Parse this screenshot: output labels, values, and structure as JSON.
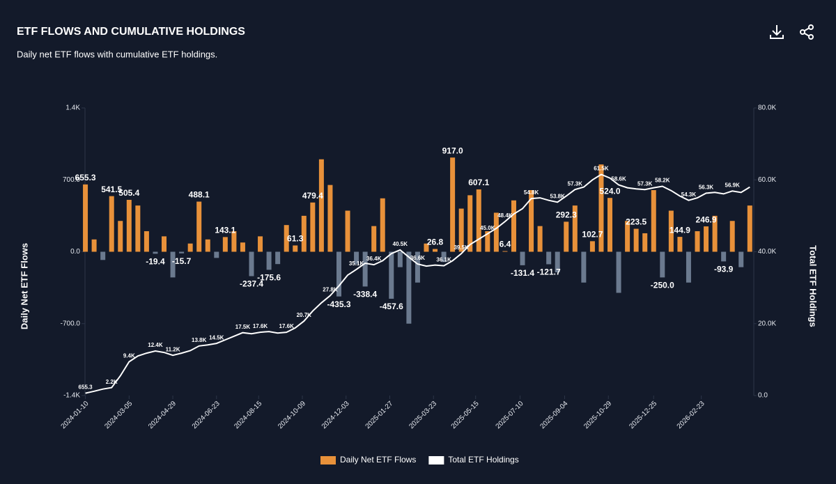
{
  "chart_data": {
    "type": "combo",
    "title": "ETF FLOWS AND CUMULATIVE HOLDINGS",
    "subtitle": "Daily net ETF flows with cumulative ETF holdings.",
    "y_label": "Daily Net ETF Flows",
    "y2_label": "Total ETF Holdings",
    "x": [
      "2024-01-10",
      "2024-01-21",
      "2024-02-01",
      "2024-02-12",
      "2024-02-23",
      "2024-03-05",
      "2024-03-16",
      "2024-03-27",
      "2024-04-07",
      "2024-04-18",
      "2024-04-29",
      "2024-05-10",
      "2024-05-21",
      "2024-06-01",
      "2024-06-12",
      "2024-06-23",
      "2024-07-04",
      "2024-07-15",
      "2024-07-26",
      "2024-08-06",
      "2024-08-17",
      "2024-08-28",
      "2024-09-08",
      "2024-09-19",
      "2024-09-30",
      "2024-10-11",
      "2024-10-22",
      "2024-11-02",
      "2024-11-13",
      "2024-11-24",
      "2024-12-05",
      "2024-12-16",
      "2024-12-27",
      "2025-01-07",
      "2025-01-18",
      "2025-01-29",
      "2025-02-09",
      "2025-02-20",
      "2025-03-03",
      "2025-03-14",
      "2025-03-25",
      "2025-04-05",
      "2025-04-16",
      "2025-04-27",
      "2025-05-08",
      "2025-05-19",
      "2025-05-30",
      "2025-06-10",
      "2025-06-21",
      "2025-07-02",
      "2025-07-13",
      "2025-07-24",
      "2025-08-04",
      "2025-08-15",
      "2025-08-26",
      "2025-09-06",
      "2025-09-17",
      "2025-09-28",
      "2025-10-09",
      "2025-10-20",
      "2025-10-31",
      "2025-11-11",
      "2025-11-22",
      "2025-12-03",
      "2025-12-14",
      "2025-12-25",
      "2026-01-05",
      "2026-01-16",
      "2026-01-27",
      "2026-02-07",
      "2026-02-18",
      "2026-03-01",
      "2026-03-12",
      "2026-03-23",
      "2026-04-03",
      "2026-04-14",
      "2026-04-25"
    ],
    "xlim": [
      "2024-01-06",
      "2026-04-30"
    ],
    "xticks": [
      "2024-01-10",
      "2024-03-05",
      "2024-04-29",
      "2024-06-23",
      "2024-08-15",
      "2024-10-09",
      "2024-12-03",
      "2025-01-27",
      "2025-03-23",
      "2025-05-15",
      "2025-07-10",
      "2025-09-04",
      "2025-10-29",
      "2025-12-25",
      "2026-02-23"
    ],
    "ylim": [
      -1400,
      1400
    ],
    "yticks": [
      {
        "value": -1400,
        "label": "-1.4K"
      },
      {
        "value": -700,
        "label": "-700.0"
      },
      {
        "value": 0,
        "label": "0.0"
      },
      {
        "value": 700,
        "label": "700.0"
      },
      {
        "value": 1400,
        "label": "1.4K"
      }
    ],
    "y2lim": [
      0,
      80000
    ],
    "y2ticks": [
      {
        "value": 0,
        "label": "0.0"
      },
      {
        "value": 20000,
        "label": "20.0K"
      },
      {
        "value": 40000,
        "label": "40.0K"
      },
      {
        "value": 60000,
        "label": "60.0K"
      },
      {
        "value": 80000,
        "label": "80.0K"
      }
    ],
    "legend": "bottom",
    "series": [
      {
        "name": "Daily Net ETF Flows",
        "type": "bar",
        "color": "#e8913a",
        "negative_color": "#6b7a8f",
        "values": [
          655.3,
          120,
          -80,
          541.5,
          300,
          505.4,
          450,
          200,
          -19.4,
          150,
          -250,
          -15.7,
          80,
          488.1,
          120,
          -60,
          143.1,
          200,
          90,
          -237.4,
          150,
          -175.6,
          -120,
          260,
          61.3,
          350,
          479.4,
          900,
          650,
          -435.3,
          400,
          -120,
          -338.4,
          250,
          520,
          -457.6,
          -150,
          -700,
          -300,
          80,
          26.8,
          -100,
          917.0,
          420,
          550,
          607.1,
          200,
          380,
          6.4,
          500,
          -131.4,
          600,
          250,
          -121.7,
          -200,
          292.3,
          450,
          -300,
          102.7,
          850,
          524.0,
          -400,
          300,
          223.5,
          180,
          600,
          -250.0,
          400,
          144.9,
          -300,
          200,
          246.9,
          350,
          -93.9,
          300,
          -150,
          450
        ],
        "value_labels": [
          "655.3",
          null,
          null,
          "541.5",
          null,
          "505.4",
          null,
          null,
          "-19.4",
          null,
          null,
          "-15.7",
          null,
          "488.1",
          null,
          null,
          "143.1",
          null,
          null,
          "-237.4",
          null,
          "-175.6",
          null,
          null,
          "61.3",
          null,
          "479.4",
          null,
          null,
          "-435.3",
          null,
          null,
          "-338.4",
          null,
          null,
          "-457.6",
          null,
          null,
          null,
          null,
          "26.8",
          null,
          "917.0",
          null,
          null,
          "607.1",
          null,
          null,
          "6.4",
          null,
          "-131.4",
          null,
          null,
          "-121.7",
          null,
          "292.3",
          null,
          null,
          "102.7",
          null,
          "524.0",
          null,
          null,
          "223.5",
          null,
          null,
          "-250.0",
          null,
          "144.9",
          null,
          null,
          "246.9",
          null,
          "-93.9",
          null,
          null,
          null
        ]
      },
      {
        "name": "Total ETF Holdings",
        "type": "line",
        "axis": "y2",
        "color": "#ffffff",
        "values": [
          655.3,
          1200,
          1800,
          2200,
          5500,
          9400,
          11000,
          11800,
          12400,
          12000,
          11200,
          11800,
          12500,
          13800,
          14100,
          14500,
          15500,
          16500,
          17500,
          17200,
          17600,
          17800,
          17400,
          17600,
          18800,
          20700,
          23500,
          25800,
          27800,
          30500,
          33500,
          35100,
          36800,
          36400,
          37500,
          39500,
          40500,
          38500,
          36600,
          36000,
          36300,
          36100,
          37500,
          39500,
          42000,
          43500,
          45000,
          46500,
          48400,
          50500,
          52000,
          54800,
          55000,
          54300,
          53800,
          55500,
          57300,
          58000,
          60000,
          61500,
          60500,
          58600,
          57800,
          57500,
          57300,
          57800,
          58200,
          57000,
          55500,
          54300,
          55000,
          56300,
          56500,
          56100,
          56900,
          56500,
          58000
        ],
        "value_labels": [
          "655.3",
          null,
          null,
          "2.2K",
          null,
          "9.4K",
          null,
          null,
          "12.4K",
          null,
          "11.2K",
          null,
          null,
          "13.8K",
          null,
          "14.5K",
          null,
          null,
          "17.5K",
          null,
          "17.6K",
          null,
          null,
          "17.6K",
          null,
          "20.7K",
          null,
          null,
          "27.8K",
          null,
          null,
          "35.1K",
          null,
          "36.4K",
          null,
          null,
          "40.5K",
          null,
          "36.6K",
          null,
          null,
          "36.1K",
          null,
          "39.5K",
          null,
          null,
          "45.0K",
          null,
          "48.4K",
          null,
          null,
          "54.8K",
          null,
          null,
          "53.8K",
          null,
          "57.3K",
          null,
          null,
          "61.5K",
          null,
          "58.6K",
          null,
          null,
          "57.3K",
          null,
          "58.2K",
          null,
          null,
          "54.3K",
          null,
          "56.3K",
          null,
          null,
          "56.9K",
          null,
          null
        ]
      }
    ]
  }
}
